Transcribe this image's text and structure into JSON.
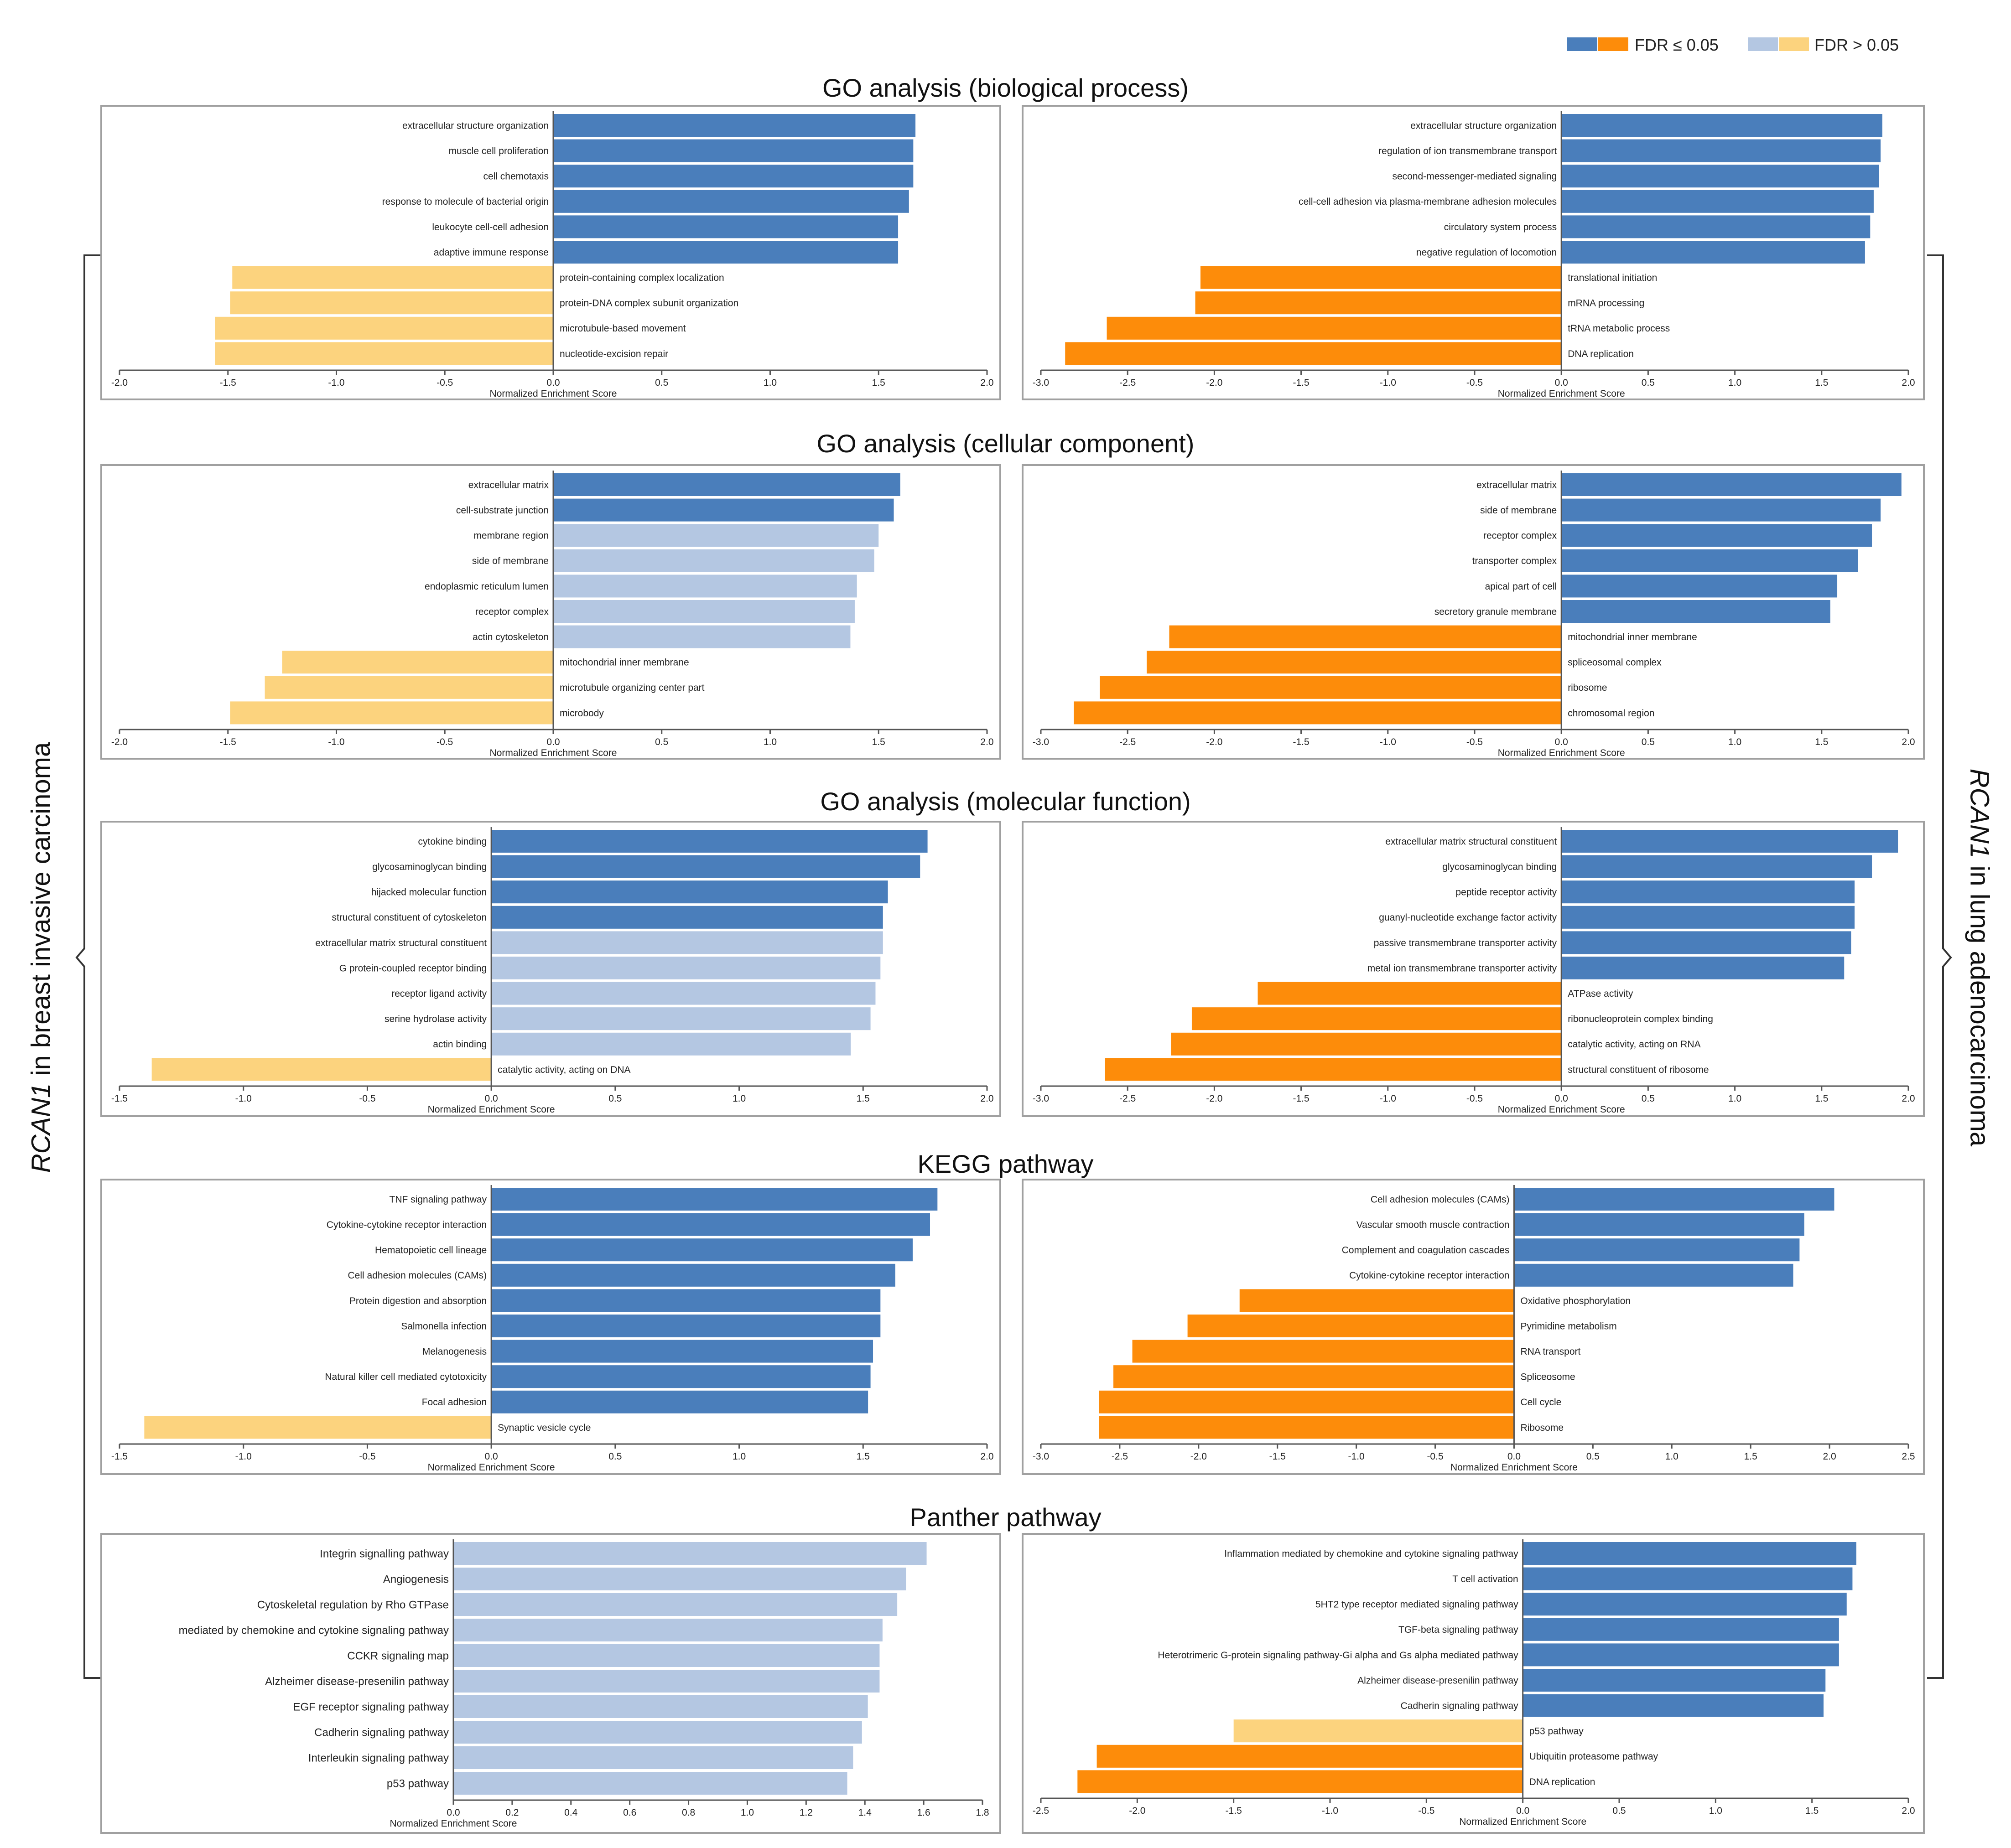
{
  "legend": {
    "significant_label": "FDR ≤ 0.05",
    "nonsignificant_label": "FDR > 0.05"
  },
  "colors": {
    "sig_pos": "#4a7ebb",
    "sig_neg": "#fd8c0a",
    "nonsig_pos": "#b4c7e2",
    "nonsig_neg": "#fcd37e",
    "axis": "#555555",
    "text": "#222222"
  },
  "side_labels": {
    "left_gene": "RCAN1",
    "left_rest": " in breast invasive carcinoma",
    "right_gene": "RCAN1",
    "right_rest": " in lung adenocarcinoma"
  },
  "sections": [
    "GO analysis (biological process)",
    "GO analysis (cellular component)",
    "GO analysis (molecular function)",
    "KEGG pathway",
    "Panther pathway"
  ],
  "chart_data": [
    {
      "type": "bar",
      "orientation": "horizontal",
      "section": "GO analysis (biological process)",
      "cohort": "breast invasive carcinoma",
      "xlabel": "Normalized Enrichment Score",
      "xlim": [
        -2.0,
        2.0
      ],
      "ticks": [
        -2.0,
        -1.5,
        -1.0,
        -0.5,
        0.0,
        0.5,
        1.0,
        1.5,
        2.0
      ],
      "categories": [
        "extracellular structure organization",
        "muscle cell proliferation",
        "cell chemotaxis",
        "response to molecule of bacterial origin",
        "leukocyte cell-cell adhesion",
        "adaptive immune response",
        "protein-containing complex localization",
        "protein-DNA complex subunit organization",
        "microtubule-based movement",
        "nucleotide-excision repair"
      ],
      "values": [
        1.67,
        1.66,
        1.66,
        1.64,
        1.59,
        1.59,
        -1.48,
        -1.49,
        -1.56,
        -1.56
      ],
      "significant": [
        true,
        true,
        true,
        true,
        true,
        true,
        false,
        false,
        false,
        false
      ]
    },
    {
      "type": "bar",
      "orientation": "horizontal",
      "section": "GO analysis (biological process)",
      "cohort": "lung adenocarcinoma",
      "xlabel": "Normalized Enrichment Score",
      "xlim": [
        -3.0,
        2.0
      ],
      "ticks": [
        -3.0,
        -2.5,
        -2.0,
        -1.5,
        -1.0,
        -0.5,
        0.0,
        0.5,
        1.0,
        1.5,
        2.0
      ],
      "categories": [
        "extracellular structure organization",
        "regulation of ion transmembrane transport",
        "second-messenger-mediated signaling",
        "cell-cell adhesion via plasma-membrane adhesion molecules",
        "circulatory system process",
        "negative regulation of locomotion",
        "translational initiation",
        "mRNA processing",
        "tRNA metabolic process",
        "DNA replication"
      ],
      "values": [
        1.85,
        1.84,
        1.83,
        1.8,
        1.78,
        1.75,
        -2.08,
        -2.11,
        -2.62,
        -2.86
      ],
      "significant": [
        true,
        true,
        true,
        true,
        true,
        true,
        true,
        true,
        true,
        true
      ]
    },
    {
      "type": "bar",
      "orientation": "horizontal",
      "section": "GO analysis (cellular component)",
      "cohort": "breast invasive carcinoma",
      "xlabel": "Normalized Enrichment Score",
      "xlim": [
        -2.0,
        2.0
      ],
      "ticks": [
        -2.0,
        -1.5,
        -1.0,
        -0.5,
        0.0,
        0.5,
        1.0,
        1.5,
        2.0
      ],
      "categories": [
        "extracellular matrix",
        "cell-substrate junction",
        "membrane region",
        "side of membrane",
        "endoplasmic reticulum lumen",
        "receptor complex",
        "actin cytoskeleton",
        "mitochondrial inner membrane",
        "microtubule organizing center part",
        "microbody"
      ],
      "values": [
        1.6,
        1.57,
        1.5,
        1.48,
        1.4,
        1.39,
        1.37,
        -1.25,
        -1.33,
        -1.49
      ],
      "significant": [
        true,
        true,
        false,
        false,
        false,
        false,
        false,
        false,
        false,
        false
      ]
    },
    {
      "type": "bar",
      "orientation": "horizontal",
      "section": "GO analysis (cellular component)",
      "cohort": "lung adenocarcinoma",
      "xlabel": "Normalized Enrichment Score",
      "xlim": [
        -3.0,
        2.0
      ],
      "ticks": [
        -3.0,
        -2.5,
        -2.0,
        -1.5,
        -1.0,
        -0.5,
        0.0,
        0.5,
        1.0,
        1.5,
        2.0
      ],
      "categories": [
        "extracellular matrix",
        "side of membrane",
        "receptor complex",
        "transporter complex",
        "apical part of cell",
        "secretory granule membrane",
        "mitochondrial inner membrane",
        "spliceosomal complex",
        "ribosome",
        "chromosomal region"
      ],
      "values": [
        1.96,
        1.84,
        1.79,
        1.71,
        1.59,
        1.55,
        -2.26,
        -2.39,
        -2.66,
        -2.81
      ],
      "significant": [
        true,
        true,
        true,
        true,
        true,
        true,
        true,
        true,
        true,
        true
      ]
    },
    {
      "type": "bar",
      "orientation": "horizontal",
      "section": "GO analysis (molecular function)",
      "cohort": "breast invasive carcinoma",
      "xlabel": "Normalized Enrichment Score",
      "xlim": [
        -1.5,
        2.0
      ],
      "ticks": [
        -1.5,
        -1.0,
        -0.5,
        0.0,
        0.5,
        1.0,
        1.5,
        2.0
      ],
      "categories": [
        "cytokine binding",
        "glycosaminoglycan binding",
        "hijacked molecular function",
        "structural constituent of cytoskeleton",
        "extracellular matrix structural constituent",
        "G protein-coupled receptor binding",
        "receptor ligand activity",
        "serine hydrolase activity",
        "actin binding",
        "catalytic activity, acting on DNA"
      ],
      "values": [
        1.76,
        1.73,
        1.6,
        1.58,
        1.58,
        1.57,
        1.55,
        1.53,
        1.45,
        -1.37
      ],
      "significant": [
        true,
        true,
        true,
        true,
        false,
        false,
        false,
        false,
        false,
        false
      ]
    },
    {
      "type": "bar",
      "orientation": "horizontal",
      "section": "GO analysis (molecular function)",
      "cohort": "lung adenocarcinoma",
      "xlabel": "Normalized Enrichment Score",
      "xlim": [
        -3.0,
        2.0
      ],
      "ticks": [
        -3.0,
        -2.5,
        -2.0,
        -1.5,
        -1.0,
        -0.5,
        0.0,
        0.5,
        1.0,
        1.5,
        2.0
      ],
      "categories": [
        "extracellular matrix structural constituent",
        "glycosaminoglycan binding",
        "peptide receptor activity",
        "guanyl-nucleotide exchange factor activity",
        "passive transmembrane transporter activity",
        "metal ion transmembrane transporter activity",
        "ATPase activity",
        "ribonucleoprotein complex binding",
        "catalytic activity, acting on RNA",
        "structural constituent of ribosome"
      ],
      "values": [
        1.94,
        1.79,
        1.69,
        1.69,
        1.67,
        1.63,
        -1.75,
        -2.13,
        -2.25,
        -2.63
      ],
      "significant": [
        true,
        true,
        true,
        true,
        true,
        true,
        true,
        true,
        true,
        true
      ]
    },
    {
      "type": "bar",
      "orientation": "horizontal",
      "section": "KEGG pathway",
      "cohort": "breast invasive carcinoma",
      "xlabel": "Normalized Enrichment Score",
      "xlim": [
        -1.5,
        2.0
      ],
      "ticks": [
        -1.5,
        -1.0,
        -0.5,
        0.0,
        0.5,
        1.0,
        1.5,
        2.0
      ],
      "categories": [
        "TNF signaling pathway",
        "Cytokine-cytokine receptor interaction",
        "Hematopoietic cell lineage",
        "Cell adhesion molecules (CAMs)",
        "Protein digestion and absorption",
        "Salmonella infection",
        "Melanogenesis",
        "Natural killer cell mediated cytotoxicity",
        "Focal adhesion",
        "Synaptic vesicle cycle"
      ],
      "values": [
        1.8,
        1.77,
        1.7,
        1.63,
        1.57,
        1.57,
        1.54,
        1.53,
        1.52,
        -1.4
      ],
      "significant": [
        true,
        true,
        true,
        true,
        true,
        true,
        true,
        true,
        true,
        false
      ]
    },
    {
      "type": "bar",
      "orientation": "horizontal",
      "section": "KEGG pathway",
      "cohort": "lung adenocarcinoma",
      "xlabel": "Normalized Enrichment Score",
      "xlim": [
        -3.0,
        2.5
      ],
      "ticks": [
        -3.0,
        -2.5,
        -2.0,
        -1.5,
        -1.0,
        -0.5,
        0.0,
        0.5,
        1.0,
        1.5,
        2.0,
        2.5
      ],
      "categories": [
        "Cell adhesion molecules (CAMs)",
        "Vascular smooth muscle contraction",
        "Complement and coagulation cascades",
        "Cytokine-cytokine receptor interaction",
        "Oxidative phosphorylation",
        "Pyrimidine metabolism",
        "RNA transport",
        "Spliceosome",
        "Cell cycle",
        "Ribosome"
      ],
      "values": [
        2.03,
        1.84,
        1.81,
        1.77,
        -1.74,
        -2.07,
        -2.42,
        -2.54,
        -2.63,
        -2.63
      ],
      "significant": [
        true,
        true,
        true,
        true,
        true,
        true,
        true,
        true,
        true,
        true
      ]
    },
    {
      "type": "bar",
      "orientation": "horizontal",
      "section": "Panther pathway",
      "cohort": "breast invasive carcinoma",
      "xlabel": "Normalized Enrichment Score",
      "xlim": [
        0.0,
        1.8
      ],
      "ticks": [
        0.0,
        0.2,
        0.4,
        0.6,
        0.8,
        1.0,
        1.2,
        1.4,
        1.6,
        1.8
      ],
      "categories": [
        "Integrin signalling pathway",
        "Angiogenesis",
        "Cytoskeletal regulation by Rho GTPase",
        "mediated by chemokine and cytokine signaling pathway",
        "CCKR signaling map",
        "Alzheimer disease-presenilin pathway",
        "EGF receptor signaling pathway",
        "Cadherin signaling pathway",
        "Interleukin signaling pathway",
        "p53 pathway"
      ],
      "values": [
        1.61,
        1.54,
        1.51,
        1.46,
        1.45,
        1.45,
        1.41,
        1.39,
        1.36,
        1.34
      ],
      "significant": [
        false,
        false,
        false,
        false,
        false,
        false,
        false,
        false,
        false,
        false
      ]
    },
    {
      "type": "bar",
      "orientation": "horizontal",
      "section": "Panther pathway",
      "cohort": "lung adenocarcinoma",
      "xlabel": "Normalized Enrichment Score",
      "xlim": [
        -2.5,
        2.0
      ],
      "ticks": [
        -2.5,
        -2.0,
        -1.5,
        -1.0,
        -0.5,
        0.0,
        0.5,
        1.0,
        1.5,
        2.0
      ],
      "categories": [
        "Inflammation mediated by chemokine and cytokine signaling pathway",
        "T cell activation",
        "5HT2 type receptor mediated signaling pathway",
        "TGF-beta signaling pathway",
        "Heterotrimeric G-protein signaling pathway-Gi alpha and Gs alpha mediated pathway",
        "Alzheimer disease-presenilin pathway",
        "Cadherin signaling pathway",
        "p53 pathway",
        "Ubiquitin proteasome pathway",
        "DNA replication"
      ],
      "values": [
        1.73,
        1.71,
        1.68,
        1.64,
        1.64,
        1.57,
        1.56,
        -1.5,
        -2.21,
        -2.31
      ],
      "significant": [
        true,
        true,
        true,
        true,
        true,
        true,
        true,
        false,
        true,
        true
      ]
    }
  ]
}
